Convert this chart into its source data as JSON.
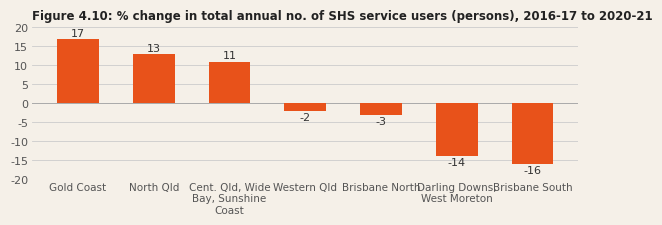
{
  "title": "Figure 4.10: % change in total annual no. of SHS service users (persons), 2016-17 to 2020-21",
  "categories": [
    "Gold Coast",
    "North Qld",
    "Cent. Qld, Wide\nBay, Sunshine\nCoast",
    "Western Qld",
    "Brisbane North",
    "Darling Downs,\nWest Moreton",
    "Brisbane South"
  ],
  "values": [
    17,
    13,
    11,
    -2,
    -3,
    -14,
    -16
  ],
  "bar_color": "#E8521A",
  "background_color": "#F5F0E8",
  "ylim": [
    -20,
    20
  ],
  "yticks": [
    -20,
    -15,
    -10,
    -5,
    0,
    5,
    10,
    15,
    20
  ],
  "title_fontsize": 8.5,
  "label_fontsize": 7.5,
  "tick_fontsize": 8,
  "bar_label_fontsize": 8
}
